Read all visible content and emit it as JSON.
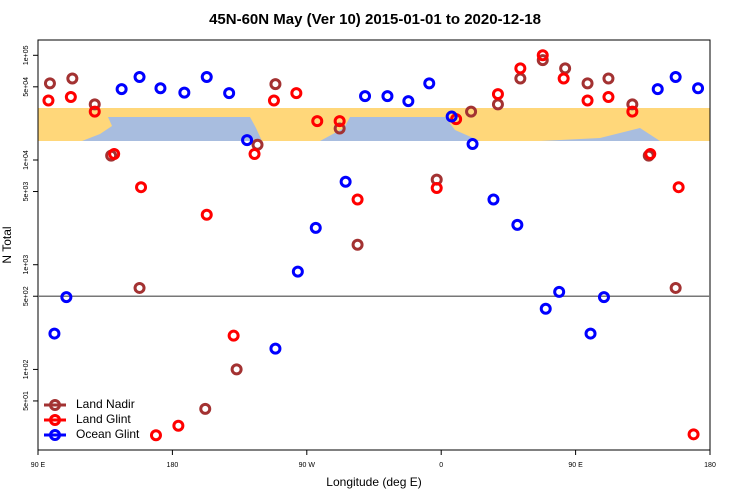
{
  "chart_data": {
    "type": "scatter",
    "title": "45N-60N May (Ver 10)   2015-01-01 to 2020-12-18",
    "x_label": "Longitude (deg E)",
    "y_label": "N Total",
    "y_scale": "log",
    "xlim": [
      90,
      540
    ],
    "ylim": [
      17,
      140000
    ],
    "xticks": [
      {
        "value": 90,
        "label": "90 E"
      },
      180,
      {
        "value": 270,
        "label": "90 W"
      },
      {
        "value": 360,
        "label": "0"
      },
      {
        "value": 450,
        "label": "90 E"
      },
      {
        "value": 540,
        "label": "180"
      }
    ],
    "yticks": [
      {
        "value": 50,
        "label": "5e+01"
      },
      {
        "value": 100,
        "label": "1e+02"
      },
      {
        "value": 500,
        "label": "5e+02"
      },
      {
        "value": 1000,
        "label": "1e+03"
      },
      {
        "value": 5000,
        "label": "5e+03"
      },
      {
        "value": 10000,
        "label": "1e+04"
      },
      {
        "value": 50000,
        "label": "5e+04"
      },
      {
        "value": 100000,
        "label": "1e+05"
      }
    ],
    "reference_line": 500,
    "legend": "lower left",
    "series": [
      {
        "name": "Land Nadir",
        "color": "#a33232",
        "x": [
          98,
          113,
          128,
          139,
          158,
          202,
          223,
          237,
          249,
          292,
          304,
          357,
          380,
          398,
          413,
          428,
          443,
          458,
          472,
          488,
          499,
          517
        ],
        "values": [
          54000,
          60000,
          34000,
          11000,
          600,
          42,
          100,
          14000,
          53000,
          20000,
          1550,
          6500,
          29000,
          34000,
          60000,
          90000,
          75000,
          54000,
          60000,
          34000,
          11000,
          600
        ]
      },
      {
        "name": "Land Glint",
        "color": "#ff0000",
        "x": [
          97,
          112,
          128,
          141,
          159,
          169,
          184,
          203,
          221,
          235,
          248,
          263,
          277,
          292,
          304,
          357,
          370,
          398,
          413,
          428,
          442,
          458,
          472,
          488,
          500,
          519,
          529
        ],
        "values": [
          37000,
          40000,
          29000,
          11400,
          5500,
          23.5,
          29,
          3000,
          210,
          11400,
          37000,
          43500,
          23500,
          23500,
          4200,
          5400,
          24600,
          42600,
          75000,
          100000,
          60000,
          37000,
          40000,
          29000,
          11400,
          5500,
          24
        ]
      },
      {
        "name": "Ocean Glint",
        "color": "#0000ff",
        "x": [
          101,
          109,
          146,
          158,
          172,
          188,
          203,
          218,
          230,
          249,
          264,
          276,
          296,
          309,
          324,
          338,
          352,
          367,
          381,
          395,
          411,
          430,
          439,
          460,
          469,
          505,
          517,
          532
        ],
        "values": [
          220,
          490,
          47500,
          62000,
          48500,
          44000,
          62000,
          43500,
          15500,
          158,
          860,
          2250,
          6200,
          40700,
          40700,
          36500,
          54000,
          26000,
          14200,
          4200,
          2400,
          380,
          550,
          220,
          490,
          47500,
          62000,
          48500
        ]
      }
    ]
  }
}
